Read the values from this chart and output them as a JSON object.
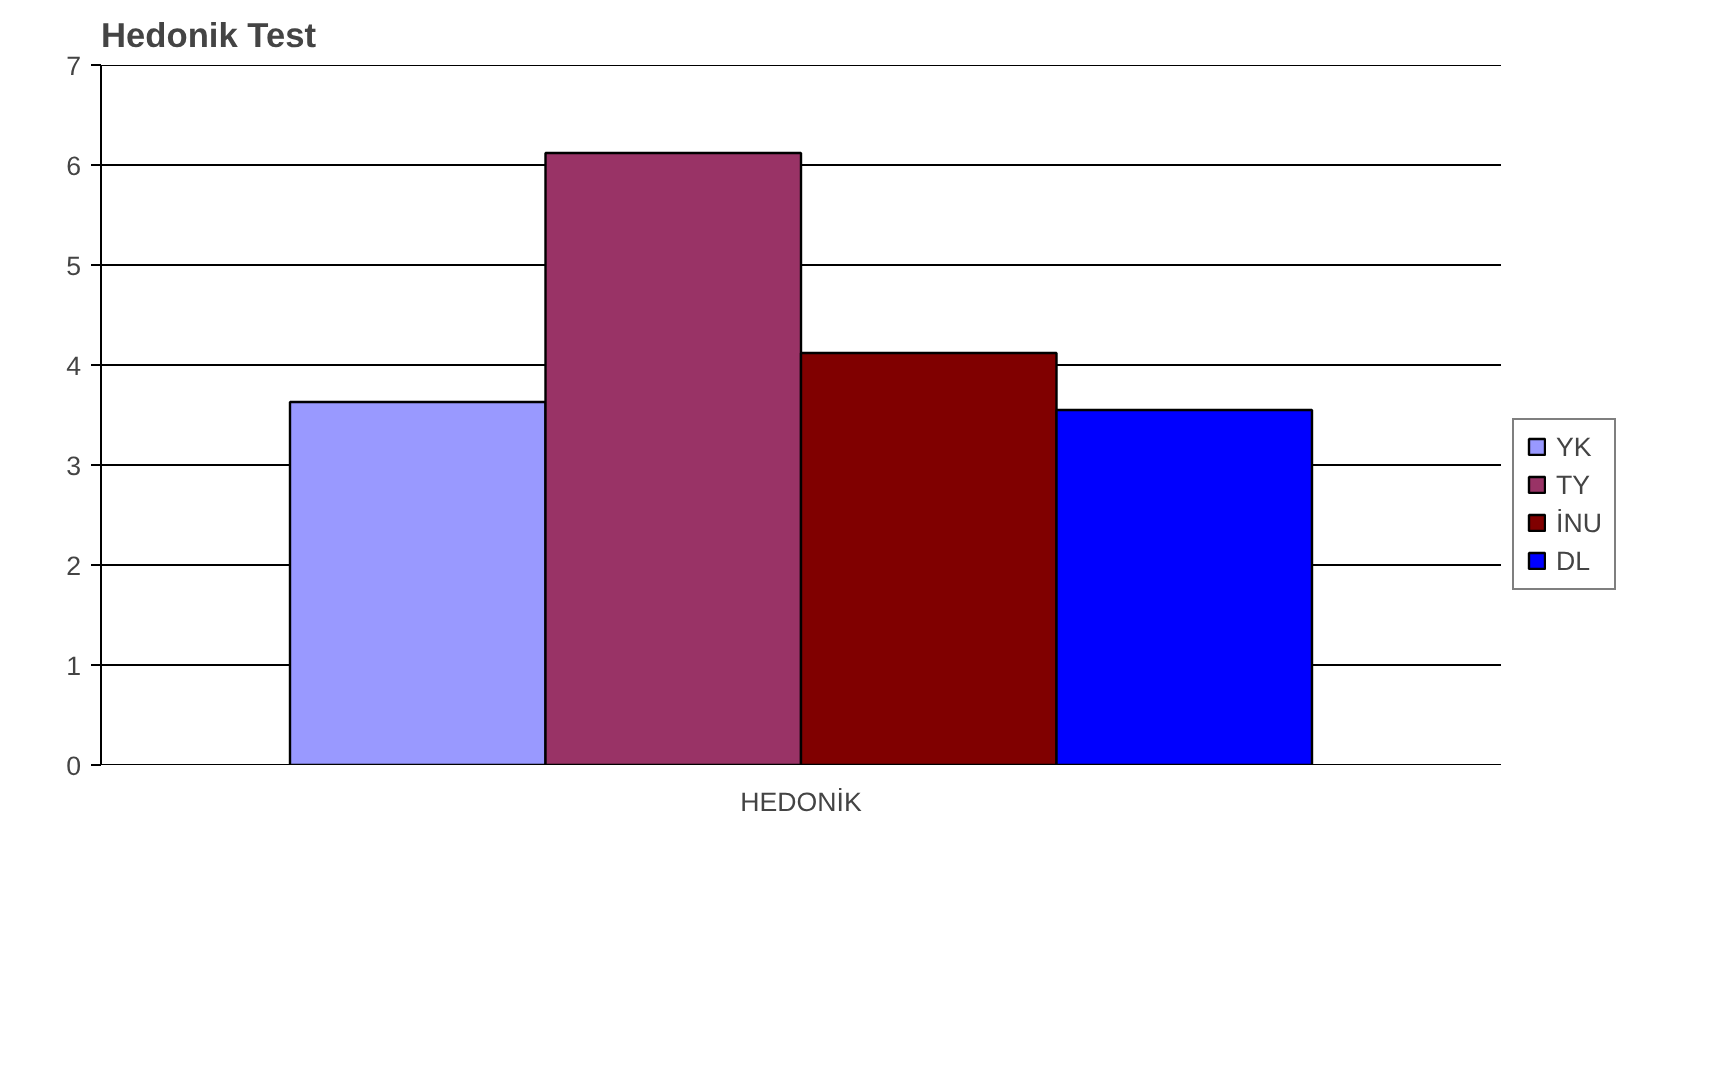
{
  "chart_data": {
    "type": "bar",
    "title": "Hedonik Test",
    "categories": [
      "HEDONİK"
    ],
    "series": [
      {
        "name": "YK",
        "color": "#9999ff",
        "values": [
          3.63
        ]
      },
      {
        "name": "TY",
        "color": "#993366",
        "values": [
          6.12
        ]
      },
      {
        "name": "İNU",
        "color": "#800000",
        "values": [
          4.12
        ]
      },
      {
        "name": "DL",
        "color": "#0000ff",
        "values": [
          3.55
        ]
      }
    ],
    "ylim": [
      0,
      7
    ],
    "yticks": [
      0,
      1,
      2,
      3,
      4,
      5,
      6,
      7
    ],
    "grid": "y",
    "legend": "right"
  }
}
